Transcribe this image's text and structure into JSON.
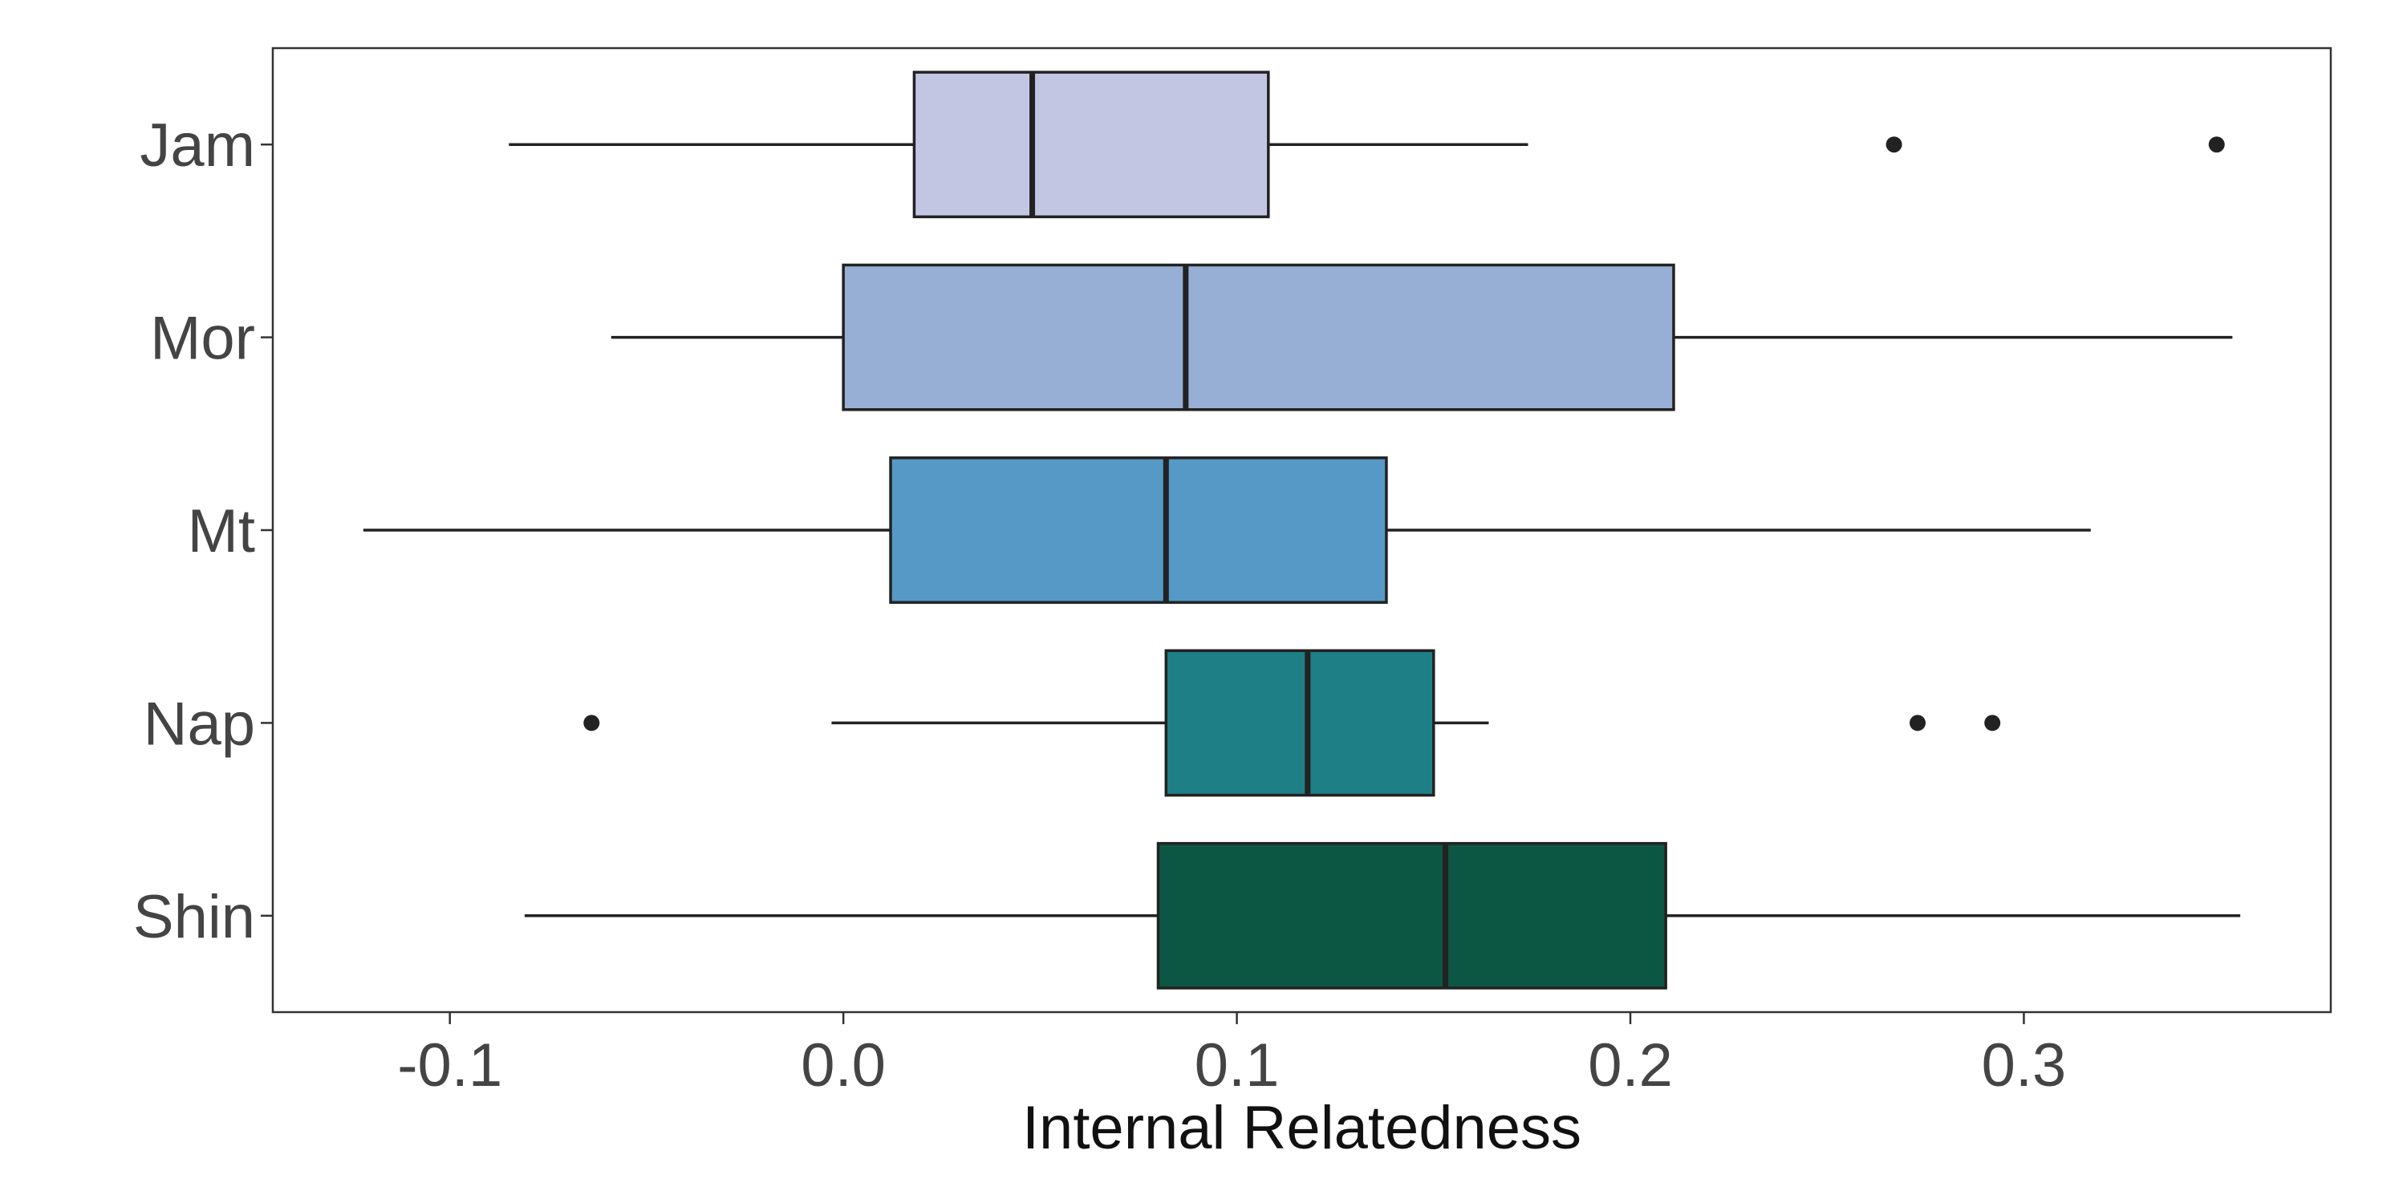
{
  "chart_data": {
    "type": "boxplot",
    "orientation": "horizontal",
    "title": "",
    "xlabel": "Internal Relatedness",
    "ylabel": "",
    "xlim": [
      -0.145,
      0.378
    ],
    "xticks": [
      -0.1,
      0.0,
      0.1,
      0.2,
      0.3
    ],
    "xtick_labels": [
      "-0.1",
      "0.0",
      "0.1",
      "0.2",
      "0.3"
    ],
    "grid": false,
    "legend": "none",
    "categories": [
      "Jam",
      "Mor",
      "Mt",
      "Nap",
      "Shin"
    ],
    "series": [
      {
        "category": "Jam",
        "color": "#c3c6e3",
        "whisker_low": -0.085,
        "q1": 0.018,
        "median": 0.048,
        "q3": 0.108,
        "whisker_high": 0.174,
        "outliers": [
          0.267,
          0.349
        ]
      },
      {
        "category": "Mor",
        "color": "#97afd5",
        "whisker_low": -0.059,
        "q1": 0.0,
        "median": 0.087,
        "q3": 0.211,
        "whisker_high": 0.353,
        "outliers": []
      },
      {
        "category": "Mt",
        "color": "#5699c6",
        "whisker_low": -0.122,
        "q1": 0.012,
        "median": 0.082,
        "q3": 0.138,
        "whisker_high": 0.317,
        "outliers": []
      },
      {
        "category": "Nap",
        "color": "#1e7f86",
        "whisker_low": -0.003,
        "q1": 0.082,
        "median": 0.118,
        "q3": 0.15,
        "whisker_high": 0.164,
        "outliers": [
          -0.064,
          0.273,
          0.292
        ]
      },
      {
        "category": "Shin",
        "color": "#0c5743",
        "whisker_low": -0.081,
        "q1": 0.08,
        "median": 0.153,
        "q3": 0.209,
        "whisker_high": 0.355,
        "outliers": []
      }
    ]
  }
}
